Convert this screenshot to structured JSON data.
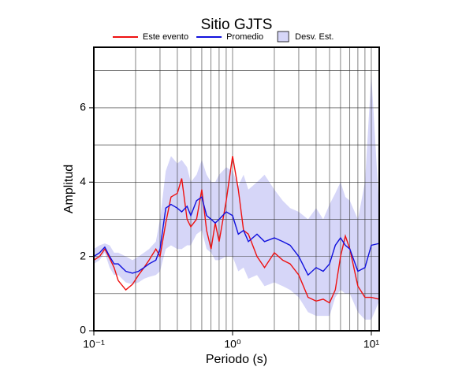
{
  "chart_data": {
    "type": "line",
    "title": "Sitio GJTS",
    "x_label": "Periodo (s)",
    "y_label": "Amplitud",
    "xscale": "log",
    "grid": true,
    "legend": "top",
    "xlim": [
      0.1,
      11.4
    ],
    "ylim": [
      0,
      7.63
    ],
    "xticks": [
      {
        "value": 0.1,
        "label": "10⁻¹"
      },
      {
        "value": 1,
        "label": "10⁰"
      },
      {
        "value": 10,
        "label": "10¹"
      }
    ],
    "xminor": [
      0.2,
      0.3,
      0.4,
      0.5,
      0.6,
      0.7,
      0.8,
      0.9,
      2,
      3,
      4,
      5,
      6,
      7,
      8,
      9
    ],
    "yticks": [
      0,
      2,
      4,
      6
    ],
    "yminor": [
      1,
      3,
      5,
      7
    ],
    "x": [
      0.1,
      0.11,
      0.12,
      0.13,
      0.14,
      0.15,
      0.17,
      0.19,
      0.21,
      0.23,
      0.25,
      0.28,
      0.3,
      0.33,
      0.36,
      0.4,
      0.43,
      0.47,
      0.5,
      0.55,
      0.6,
      0.65,
      0.7,
      0.75,
      0.8,
      0.9,
      1.0,
      1.1,
      1.2,
      1.3,
      1.5,
      1.7,
      2.0,
      2.3,
      2.6,
      3.0,
      3.5,
      4.0,
      4.5,
      5.0,
      5.5,
      6.0,
      6.5,
      7.0,
      8.0,
      9.0,
      10.0,
      11.4
    ],
    "band": {
      "name": "Desv. Est.",
      "color": "#d6d6f8",
      "upper": [
        2.2,
        2.3,
        2.35,
        2.3,
        2.1,
        2.1,
        2.0,
        1.9,
        2.0,
        2.1,
        2.2,
        2.4,
        3.0,
        4.3,
        4.7,
        4.5,
        4.6,
        4.4,
        4.0,
        4.2,
        4.6,
        4.2,
        4.0,
        4.0,
        4.2,
        4.4,
        4.3,
        3.9,
        4.2,
        3.8,
        4.0,
        4.2,
        3.8,
        3.5,
        3.3,
        3.2,
        3.0,
        3.3,
        3.0,
        3.4,
        3.7,
        4.0,
        3.6,
        3.5,
        3.0,
        4.0,
        6.9,
        3.3
      ],
      "lower": [
        1.8,
        1.9,
        2.1,
        1.7,
        1.5,
        1.5,
        1.3,
        1.25,
        1.3,
        1.4,
        1.45,
        1.5,
        1.6,
        2.2,
        2.3,
        2.2,
        2.2,
        2.3,
        2.3,
        2.6,
        2.7,
        2.2,
        2.1,
        1.9,
        1.9,
        2.0,
        2.0,
        1.6,
        1.7,
        1.4,
        1.5,
        1.2,
        1.3,
        1.2,
        1.1,
        0.9,
        0.5,
        0.4,
        0.4,
        0.4,
        0.9,
        1.1,
        1.0,
        1.0,
        0.5,
        0.3,
        0.3,
        0.8
      ]
    },
    "series": [
      {
        "name": "Este evento",
        "color": "#ee1111",
        "values": [
          1.9,
          2.0,
          2.2,
          1.95,
          1.7,
          1.35,
          1.1,
          1.25,
          1.5,
          1.7,
          1.9,
          2.2,
          2.0,
          2.9,
          3.6,
          3.7,
          4.1,
          3.0,
          2.8,
          3.0,
          3.8,
          2.7,
          2.2,
          2.9,
          2.4,
          3.5,
          4.7,
          3.8,
          2.7,
          2.6,
          2.0,
          1.7,
          2.1,
          1.9,
          1.8,
          1.5,
          0.9,
          0.8,
          0.85,
          0.75,
          1.1,
          2.0,
          2.55,
          2.2,
          1.2,
          0.9,
          0.9,
          0.85
        ]
      },
      {
        "name": "Promedio",
        "color": "#1111dd",
        "values": [
          2.0,
          2.1,
          2.25,
          2.0,
          1.8,
          1.8,
          1.6,
          1.55,
          1.6,
          1.7,
          1.8,
          1.9,
          2.2,
          3.3,
          3.4,
          3.3,
          3.2,
          3.35,
          3.1,
          3.5,
          3.6,
          3.1,
          3.0,
          2.9,
          3.0,
          3.2,
          3.1,
          2.6,
          2.7,
          2.4,
          2.6,
          2.4,
          2.5,
          2.4,
          2.3,
          2.0,
          1.5,
          1.7,
          1.6,
          1.8,
          2.3,
          2.5,
          2.3,
          2.2,
          1.6,
          1.7,
          2.3,
          2.35
        ]
      }
    ]
  }
}
